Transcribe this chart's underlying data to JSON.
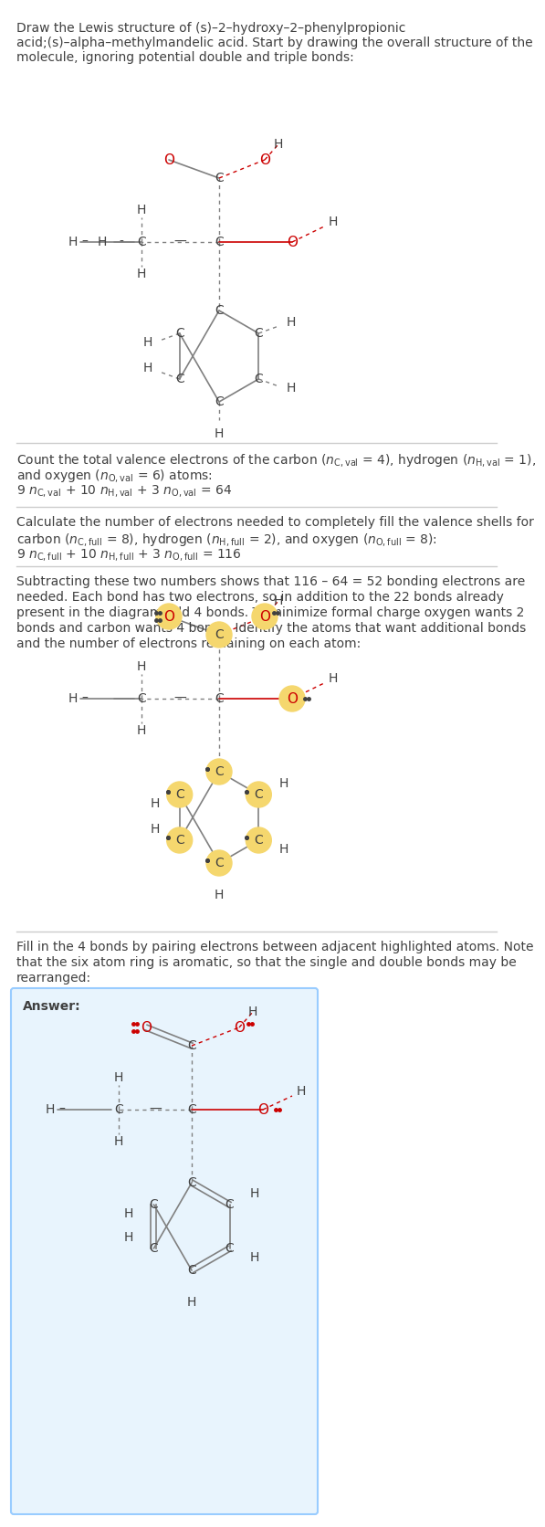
{
  "title_text": "Draw the Lewis structure of (s)–2–hydroxy–2–phenylpropionic\nacid;(s)–alpha–methylmandelic acid. Start by drawing the overall structure of the\nmolecule, ignoring potential double and triple bonds:",
  "section2_text": "Count the total valence electrons of the carbon ($n_{C,val}$ = 4), hydrogen ($n_{H,val}$ = 1),\nand oxygen ($n_{O,val}$ = 6) atoms:\n9 $n_{C,val}$ + 10 $n_{H,val}$ + 3 $n_{O,val}$ = 64",
  "section3_text": "Calculate the number of electrons needed to completely fill the valence shells for\ncarbon ($n_{C,full}$ = 8), hydrogen ($n_{H,full}$ = 2), and oxygen ($n_{O,full}$ = 8):\n9 $n_{C,full}$ + 10 $n_{H,full}$ + 3 $n_{O,full}$ = 116",
  "section4_text": "Subtracting these two numbers shows that 116 – 64 = 52 bonding electrons are\nneeded. Each bond has two electrons, so in addition to the 22 bonds already\npresent in the diagram add 4 bonds. To minimize formal charge oxygen wants 2\nbonds and carbon wants 4 bonds. Identify the atoms that want additional bonds\nand the number of electrons remaining on each atom:",
  "section5_text": "Fill in the 4 bonds by pairing electrons between adjacent highlighted atoms. Note\nthat the six atom ring is aromatic, so that the single and double bonds may be\nrearranged:",
  "answer_label": "Answer:",
  "bg_color": "#ffffff",
  "text_color": "#404040",
  "red_color": "#cc0000",
  "highlight_color": "#f5d76e",
  "bond_color": "#808080",
  "atom_C_color": "#404040",
  "atom_O_color": "#cc0000"
}
